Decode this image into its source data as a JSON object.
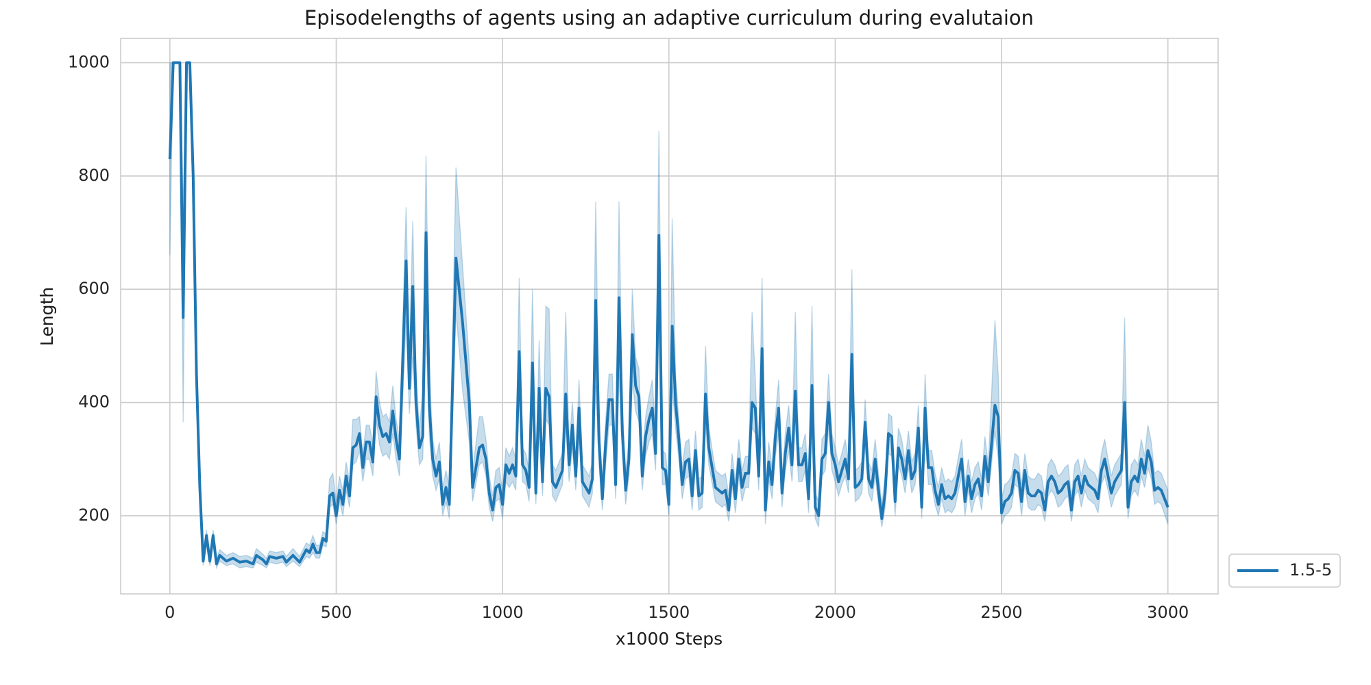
{
  "chart_data": {
    "type": "line",
    "title": "Episodelengths of agents using an adaptive curriculum during evalutaion",
    "xlabel": "x1000 Steps",
    "ylabel": "Length",
    "xlim": [
      -148,
      3151
    ],
    "ylim": [
      62,
      1043
    ],
    "xticks": [
      0,
      500,
      1000,
      1500,
      2000,
      2500,
      3000
    ],
    "yticks": [
      200,
      400,
      600,
      800,
      1000
    ],
    "grid": true,
    "legend_loc": "outside-lower-right",
    "x": [
      0,
      10,
      20,
      30,
      40,
      50,
      60,
      70,
      80,
      90,
      100,
      110,
      120,
      130,
      140,
      150,
      170,
      190,
      210,
      230,
      250,
      260,
      280,
      290,
      300,
      320,
      340,
      350,
      370,
      390,
      410,
      420,
      430,
      440,
      450,
      460,
      470,
      480,
      490,
      500,
      510,
      520,
      530,
      540,
      550,
      560,
      570,
      580,
      590,
      600,
      610,
      620,
      630,
      640,
      650,
      660,
      670,
      680,
      690,
      710,
      720,
      730,
      740,
      750,
      760,
      770,
      780,
      790,
      800,
      810,
      820,
      830,
      840,
      860,
      880,
      900,
      910,
      930,
      940,
      950,
      960,
      970,
      980,
      990,
      1000,
      1010,
      1020,
      1030,
      1040,
      1050,
      1060,
      1070,
      1080,
      1090,
      1100,
      1110,
      1120,
      1130,
      1140,
      1150,
      1160,
      1170,
      1180,
      1190,
      1200,
      1210,
      1220,
      1230,
      1240,
      1260,
      1270,
      1280,
      1290,
      1300,
      1310,
      1320,
      1330,
      1340,
      1350,
      1360,
      1370,
      1380,
      1390,
      1400,
      1410,
      1420,
      1430,
      1440,
      1450,
      1460,
      1470,
      1480,
      1490,
      1500,
      1510,
      1520,
      1530,
      1540,
      1550,
      1560,
      1570,
      1580,
      1590,
      1600,
      1610,
      1620,
      1640,
      1660,
      1670,
      1680,
      1690,
      1700,
      1710,
      1720,
      1730,
      1740,
      1750,
      1760,
      1770,
      1780,
      1790,
      1800,
      1810,
      1820,
      1830,
      1840,
      1850,
      1860,
      1870,
      1880,
      1890,
      1900,
      1910,
      1920,
      1930,
      1940,
      1950,
      1960,
      1970,
      1980,
      1990,
      2000,
      2010,
      2020,
      2030,
      2040,
      2050,
      2060,
      2070,
      2080,
      2090,
      2100,
      2110,
      2120,
      2130,
      2140,
      2150,
      2160,
      2170,
      2180,
      2190,
      2200,
      2210,
      2220,
      2230,
      2240,
      2250,
      2260,
      2270,
      2280,
      2290,
      2300,
      2310,
      2320,
      2330,
      2340,
      2350,
      2360,
      2380,
      2390,
      2400,
      2410,
      2420,
      2430,
      2440,
      2450,
      2460,
      2480,
      2490,
      2500,
      2510,
      2520,
      2530,
      2540,
      2550,
      2560,
      2570,
      2580,
      2590,
      2600,
      2610,
      2620,
      2630,
      2640,
      2650,
      2660,
      2670,
      2680,
      2690,
      2700,
      2710,
      2720,
      2730,
      2740,
      2750,
      2760,
      2770,
      2780,
      2790,
      2800,
      2810,
      2820,
      2830,
      2840,
      2850,
      2860,
      2870,
      2880,
      2890,
      2900,
      2910,
      2920,
      2930,
      2940,
      2950,
      2960,
      2970,
      2980,
      3000
    ],
    "series": [
      {
        "name": "1.5-5",
        "color": "#1f77b4",
        "values": [
          830,
          1000,
          1000,
          1000,
          550,
          1000,
          1000,
          800,
          450,
          250,
          120,
          165,
          120,
          165,
          115,
          130,
          120,
          125,
          118,
          120,
          115,
          130,
          122,
          115,
          128,
          125,
          128,
          118,
          130,
          118,
          140,
          135,
          150,
          135,
          135,
          160,
          155,
          235,
          240,
          200,
          245,
          220,
          270,
          235,
          320,
          325,
          345,
          285,
          330,
          330,
          295,
          410,
          360,
          340,
          345,
          330,
          385,
          335,
          300,
          650,
          425,
          605,
          400,
          320,
          340,
          700,
          390,
          300,
          270,
          295,
          220,
          250,
          220,
          655,
          540,
          400,
          250,
          320,
          325,
          300,
          240,
          210,
          250,
          255,
          220,
          290,
          275,
          290,
          270,
          490,
          290,
          280,
          250,
          470,
          240,
          425,
          260,
          425,
          410,
          260,
          250,
          265,
          280,
          415,
          290,
          360,
          270,
          390,
          260,
          240,
          265,
          580,
          330,
          230,
          330,
          405,
          405,
          255,
          585,
          350,
          245,
          300,
          520,
          430,
          410,
          270,
          340,
          370,
          390,
          310,
          695,
          285,
          280,
          220,
          535,
          400,
          335,
          255,
          295,
          300,
          235,
          315,
          235,
          240,
          415,
          320,
          250,
          240,
          245,
          210,
          280,
          230,
          300,
          250,
          275,
          275,
          400,
          390,
          270,
          495,
          210,
          295,
          255,
          340,
          390,
          240,
          310,
          355,
          290,
          420,
          290,
          290,
          310,
          230,
          430,
          215,
          200,
          300,
          310,
          400,
          310,
          290,
          260,
          280,
          300,
          265,
          485,
          250,
          255,
          265,
          365,
          265,
          250,
          300,
          245,
          195,
          240,
          345,
          340,
          225,
          320,
          300,
          265,
          315,
          265,
          280,
          355,
          215,
          390,
          285,
          285,
          245,
          220,
          255,
          230,
          235,
          230,
          240,
          300,
          225,
          270,
          230,
          255,
          265,
          235,
          305,
          260,
          395,
          375,
          205,
          225,
          230,
          240,
          280,
          275,
          225,
          280,
          240,
          235,
          235,
          245,
          240,
          210,
          260,
          270,
          260,
          240,
          245,
          255,
          260,
          210,
          260,
          270,
          240,
          270,
          255,
          250,
          245,
          230,
          280,
          300,
          270,
          240,
          260,
          270,
          280,
          400,
          215,
          260,
          270,
          260,
          300,
          275,
          315,
          295,
          245,
          250,
          245,
          215
        ],
        "band_lower": [
          660,
          1000,
          1000,
          1000,
          365,
          1000,
          1000,
          780,
          430,
          235,
          112,
          150,
          112,
          150,
          108,
          120,
          112,
          115,
          108,
          110,
          108,
          118,
          112,
          108,
          118,
          115,
          118,
          110,
          120,
          110,
          128,
          125,
          135,
          125,
          125,
          148,
          145,
          215,
          220,
          185,
          225,
          200,
          245,
          215,
          290,
          295,
          315,
          260,
          300,
          300,
          270,
          370,
          325,
          305,
          310,
          300,
          345,
          300,
          270,
          545,
          380,
          480,
          360,
          290,
          300,
          520,
          340,
          270,
          245,
          265,
          200,
          225,
          195,
          560,
          420,
          330,
          225,
          290,
          295,
          270,
          215,
          190,
          225,
          230,
          195,
          260,
          250,
          260,
          245,
          420,
          260,
          255,
          225,
          400,
          220,
          360,
          235,
          370,
          360,
          235,
          225,
          240,
          255,
          360,
          260,
          320,
          245,
          345,
          235,
          215,
          240,
          430,
          290,
          210,
          290,
          360,
          360,
          230,
          450,
          310,
          220,
          270,
          440,
          385,
          365,
          245,
          305,
          330,
          345,
          280,
          560,
          255,
          255,
          200,
          430,
          355,
          300,
          230,
          265,
          270,
          210,
          285,
          210,
          215,
          360,
          290,
          225,
          215,
          220,
          190,
          255,
          205,
          270,
          225,
          250,
          250,
          355,
          345,
          245,
          420,
          185,
          265,
          230,
          305,
          345,
          215,
          280,
          315,
          260,
          365,
          260,
          260,
          280,
          205,
          370,
          195,
          180,
          270,
          280,
          355,
          280,
          260,
          235,
          255,
          270,
          240,
          410,
          225,
          230,
          240,
          325,
          240,
          225,
          270,
          220,
          180,
          215,
          310,
          305,
          200,
          290,
          270,
          240,
          285,
          240,
          255,
          315,
          195,
          345,
          255,
          255,
          220,
          200,
          230,
          205,
          210,
          205,
          215,
          270,
          200,
          245,
          205,
          230,
          240,
          210,
          275,
          235,
          350,
          300,
          185,
          200,
          205,
          215,
          255,
          250,
          200,
          255,
          215,
          210,
          210,
          220,
          215,
          190,
          235,
          245,
          235,
          215,
          220,
          230,
          235,
          190,
          235,
          245,
          215,
          245,
          230,
          225,
          220,
          205,
          255,
          270,
          245,
          215,
          235,
          245,
          255,
          340,
          195,
          235,
          245,
          235,
          270,
          250,
          285,
          265,
          220,
          225,
          220,
          185
        ],
        "band_upper": [
          1000,
          1000,
          1000,
          1000,
          740,
          1000,
          1000,
          820,
          470,
          265,
          130,
          175,
          130,
          175,
          125,
          140,
          130,
          135,
          128,
          130,
          125,
          142,
          132,
          125,
          138,
          135,
          138,
          128,
          142,
          128,
          152,
          148,
          165,
          148,
          148,
          172,
          168,
          265,
          275,
          225,
          270,
          245,
          295,
          260,
          370,
          370,
          375,
          310,
          360,
          360,
          325,
          455,
          400,
          375,
          380,
          365,
          430,
          370,
          335,
          745,
          480,
          720,
          450,
          355,
          420,
          835,
          450,
          335,
          300,
          330,
          250,
          280,
          250,
          815,
          640,
          470,
          280,
          375,
          375,
          335,
          270,
          235,
          280,
          285,
          245,
          320,
          305,
          320,
          300,
          620,
          320,
          310,
          280,
          600,
          270,
          510,
          290,
          570,
          565,
          290,
          280,
          295,
          310,
          560,
          320,
          400,
          300,
          440,
          290,
          270,
          295,
          755,
          370,
          260,
          370,
          450,
          450,
          285,
          755,
          390,
          275,
          335,
          600,
          480,
          460,
          300,
          375,
          410,
          440,
          345,
          880,
          315,
          310,
          250,
          725,
          450,
          370,
          285,
          330,
          335,
          265,
          350,
          265,
          270,
          500,
          355,
          280,
          270,
          275,
          235,
          310,
          260,
          335,
          280,
          305,
          305,
          560,
          440,
          300,
          620,
          240,
          330,
          285,
          375,
          440,
          270,
          345,
          395,
          320,
          560,
          320,
          320,
          345,
          260,
          570,
          240,
          225,
          335,
          345,
          450,
          345,
          320,
          290,
          310,
          335,
          295,
          635,
          280,
          285,
          295,
          405,
          295,
          280,
          335,
          275,
          220,
          270,
          380,
          375,
          255,
          355,
          335,
          295,
          350,
          295,
          310,
          395,
          240,
          450,
          315,
          315,
          275,
          250,
          285,
          260,
          265,
          260,
          270,
          335,
          255,
          300,
          260,
          285,
          295,
          265,
          340,
          290,
          545,
          450,
          230,
          255,
          260,
          270,
          310,
          305,
          255,
          310,
          270,
          265,
          265,
          275,
          270,
          235,
          290,
          300,
          290,
          270,
          275,
          285,
          290,
          235,
          290,
          300,
          270,
          300,
          285,
          280,
          275,
          260,
          310,
          335,
          300,
          270,
          290,
          300,
          310,
          550,
          240,
          290,
          300,
          290,
          335,
          305,
          360,
          330,
          275,
          280,
          275,
          245
        ]
      }
    ]
  }
}
